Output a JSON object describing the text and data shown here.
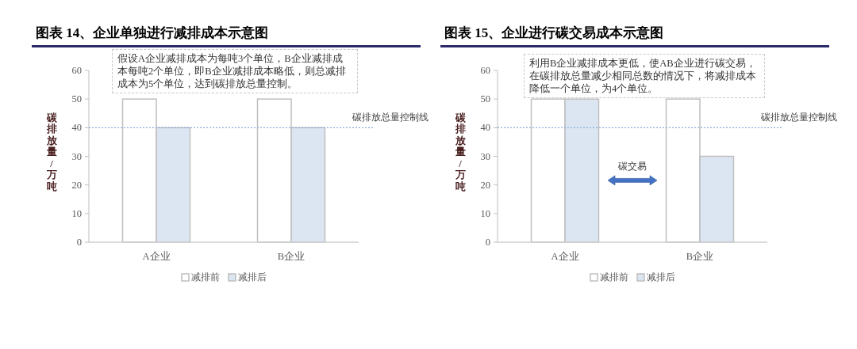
{
  "chart_data": [
    {
      "type": "bar",
      "title": "图表 14、企业单独进行减排成本示意图",
      "ylabel": "碳排放量/万吨",
      "categories": [
        "A企业",
        "B企业"
      ],
      "series": [
        {
          "name": "减排前",
          "color": "#ffffff",
          "values": [
            50,
            50
          ]
        },
        {
          "name": "减排后",
          "color": "#dce6f2",
          "values": [
            40,
            40
          ]
        }
      ],
      "ylim": [
        0,
        60
      ],
      "yticks": [
        0,
        10,
        20,
        30,
        40,
        50,
        60
      ],
      "legend": "bottom",
      "ref_lines": [
        {
          "axis": "y",
          "value": 40,
          "label": "碳排放总量控制线",
          "color": "#8eaadb",
          "line_style": "dotted"
        }
      ],
      "annotations": [
        "假设A企业减排成本为每吨3个单位，B企业减排成本每吨2个单位，即B企业减排成本略低，则总减排成本为5个单位，达到碳排放总量控制。"
      ]
    },
    {
      "type": "bar",
      "title": "图表 15、企业进行碳交易成本示意图",
      "ylabel": "碳排放量/万吨",
      "categories": [
        "A企业",
        "B企业"
      ],
      "series": [
        {
          "name": "减排前",
          "color": "#ffffff",
          "values": [
            50,
            50
          ]
        },
        {
          "name": "减排后",
          "color": "#dce6f2",
          "values": [
            50,
            30
          ]
        }
      ],
      "ylim": [
        0,
        60
      ],
      "yticks": [
        0,
        10,
        20,
        30,
        40,
        50,
        60
      ],
      "legend": "bottom",
      "ref_lines": [
        {
          "axis": "y",
          "value": 40,
          "label": "碳排放总量控制线",
          "color": "#8eaadb",
          "line_style": "dotted"
        }
      ],
      "annotations": [
        "利用B企业减排成本更低，使AB企业进行碳交易，在碳排放总量减少相同总数的情况下，将减排成本降低一个单位，为4个单位。",
        "碳交易"
      ]
    }
  ]
}
